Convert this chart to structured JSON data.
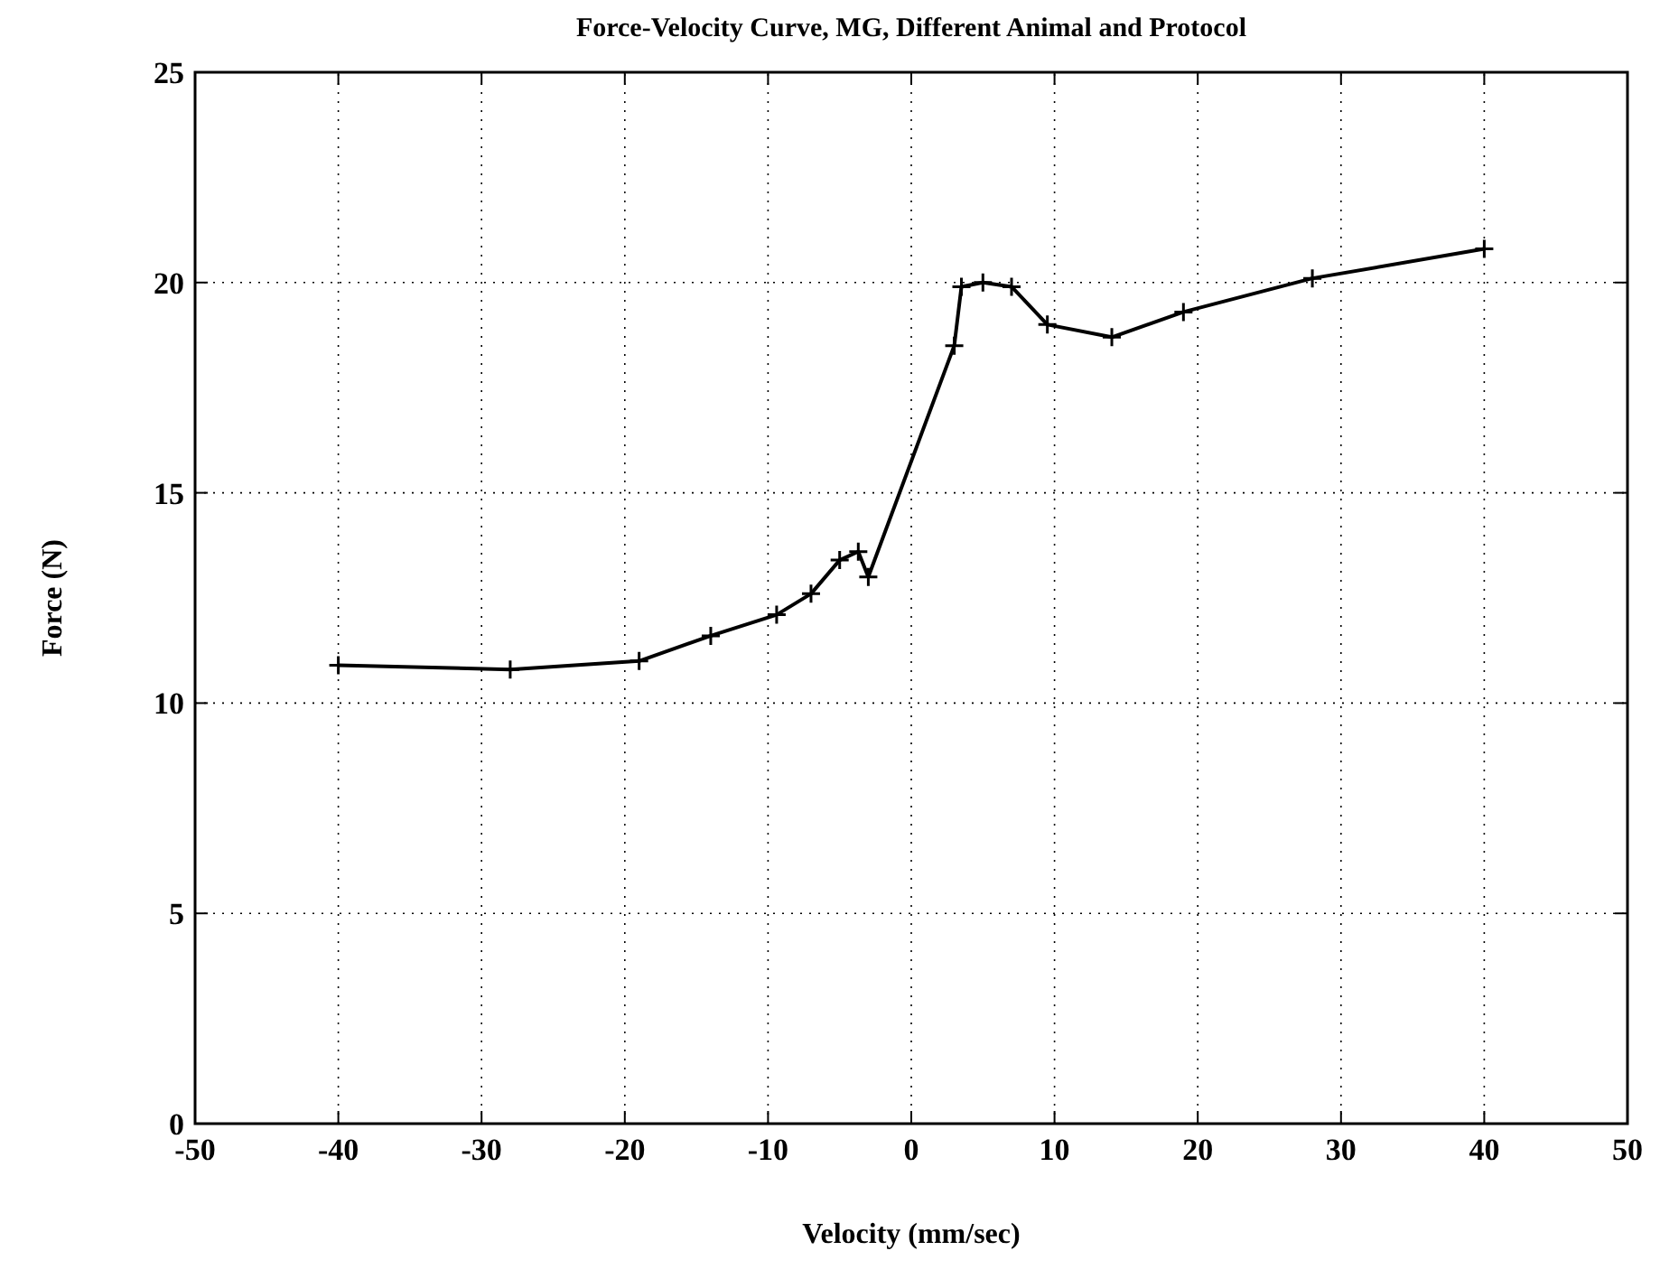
{
  "chart_data": {
    "type": "line",
    "title": "Force-Velocity Curve, MG, Different Animal and Protocol",
    "xlabel": "Velocity (mm/sec)",
    "ylabel": "Force (N)",
    "x": [
      -40,
      -28,
      -19,
      -14,
      -9.4,
      -7,
      -5,
      -3.7,
      -3,
      3,
      3.5,
      5,
      7,
      9.5,
      14,
      19,
      28,
      40
    ],
    "series": [
      {
        "color": "#000000",
        "values": [
          10.9,
          10.8,
          11.0,
          11.6,
          12.1,
          12.6,
          13.4,
          13.6,
          13.0,
          18.5,
          19.9,
          20.0,
          19.9,
          19.0,
          18.7,
          19.3,
          20.1,
          20.8
        ]
      }
    ],
    "xlim": [
      -50,
      50
    ],
    "xticks": [
      -50,
      -40,
      -30,
      -20,
      -10,
      0,
      10,
      20,
      30,
      40,
      50
    ],
    "ylim": [
      0,
      25
    ],
    "yticks": [
      0,
      5,
      10,
      15,
      20,
      25
    ],
    "grid": true,
    "marker": "cross",
    "line_style": "solid"
  }
}
